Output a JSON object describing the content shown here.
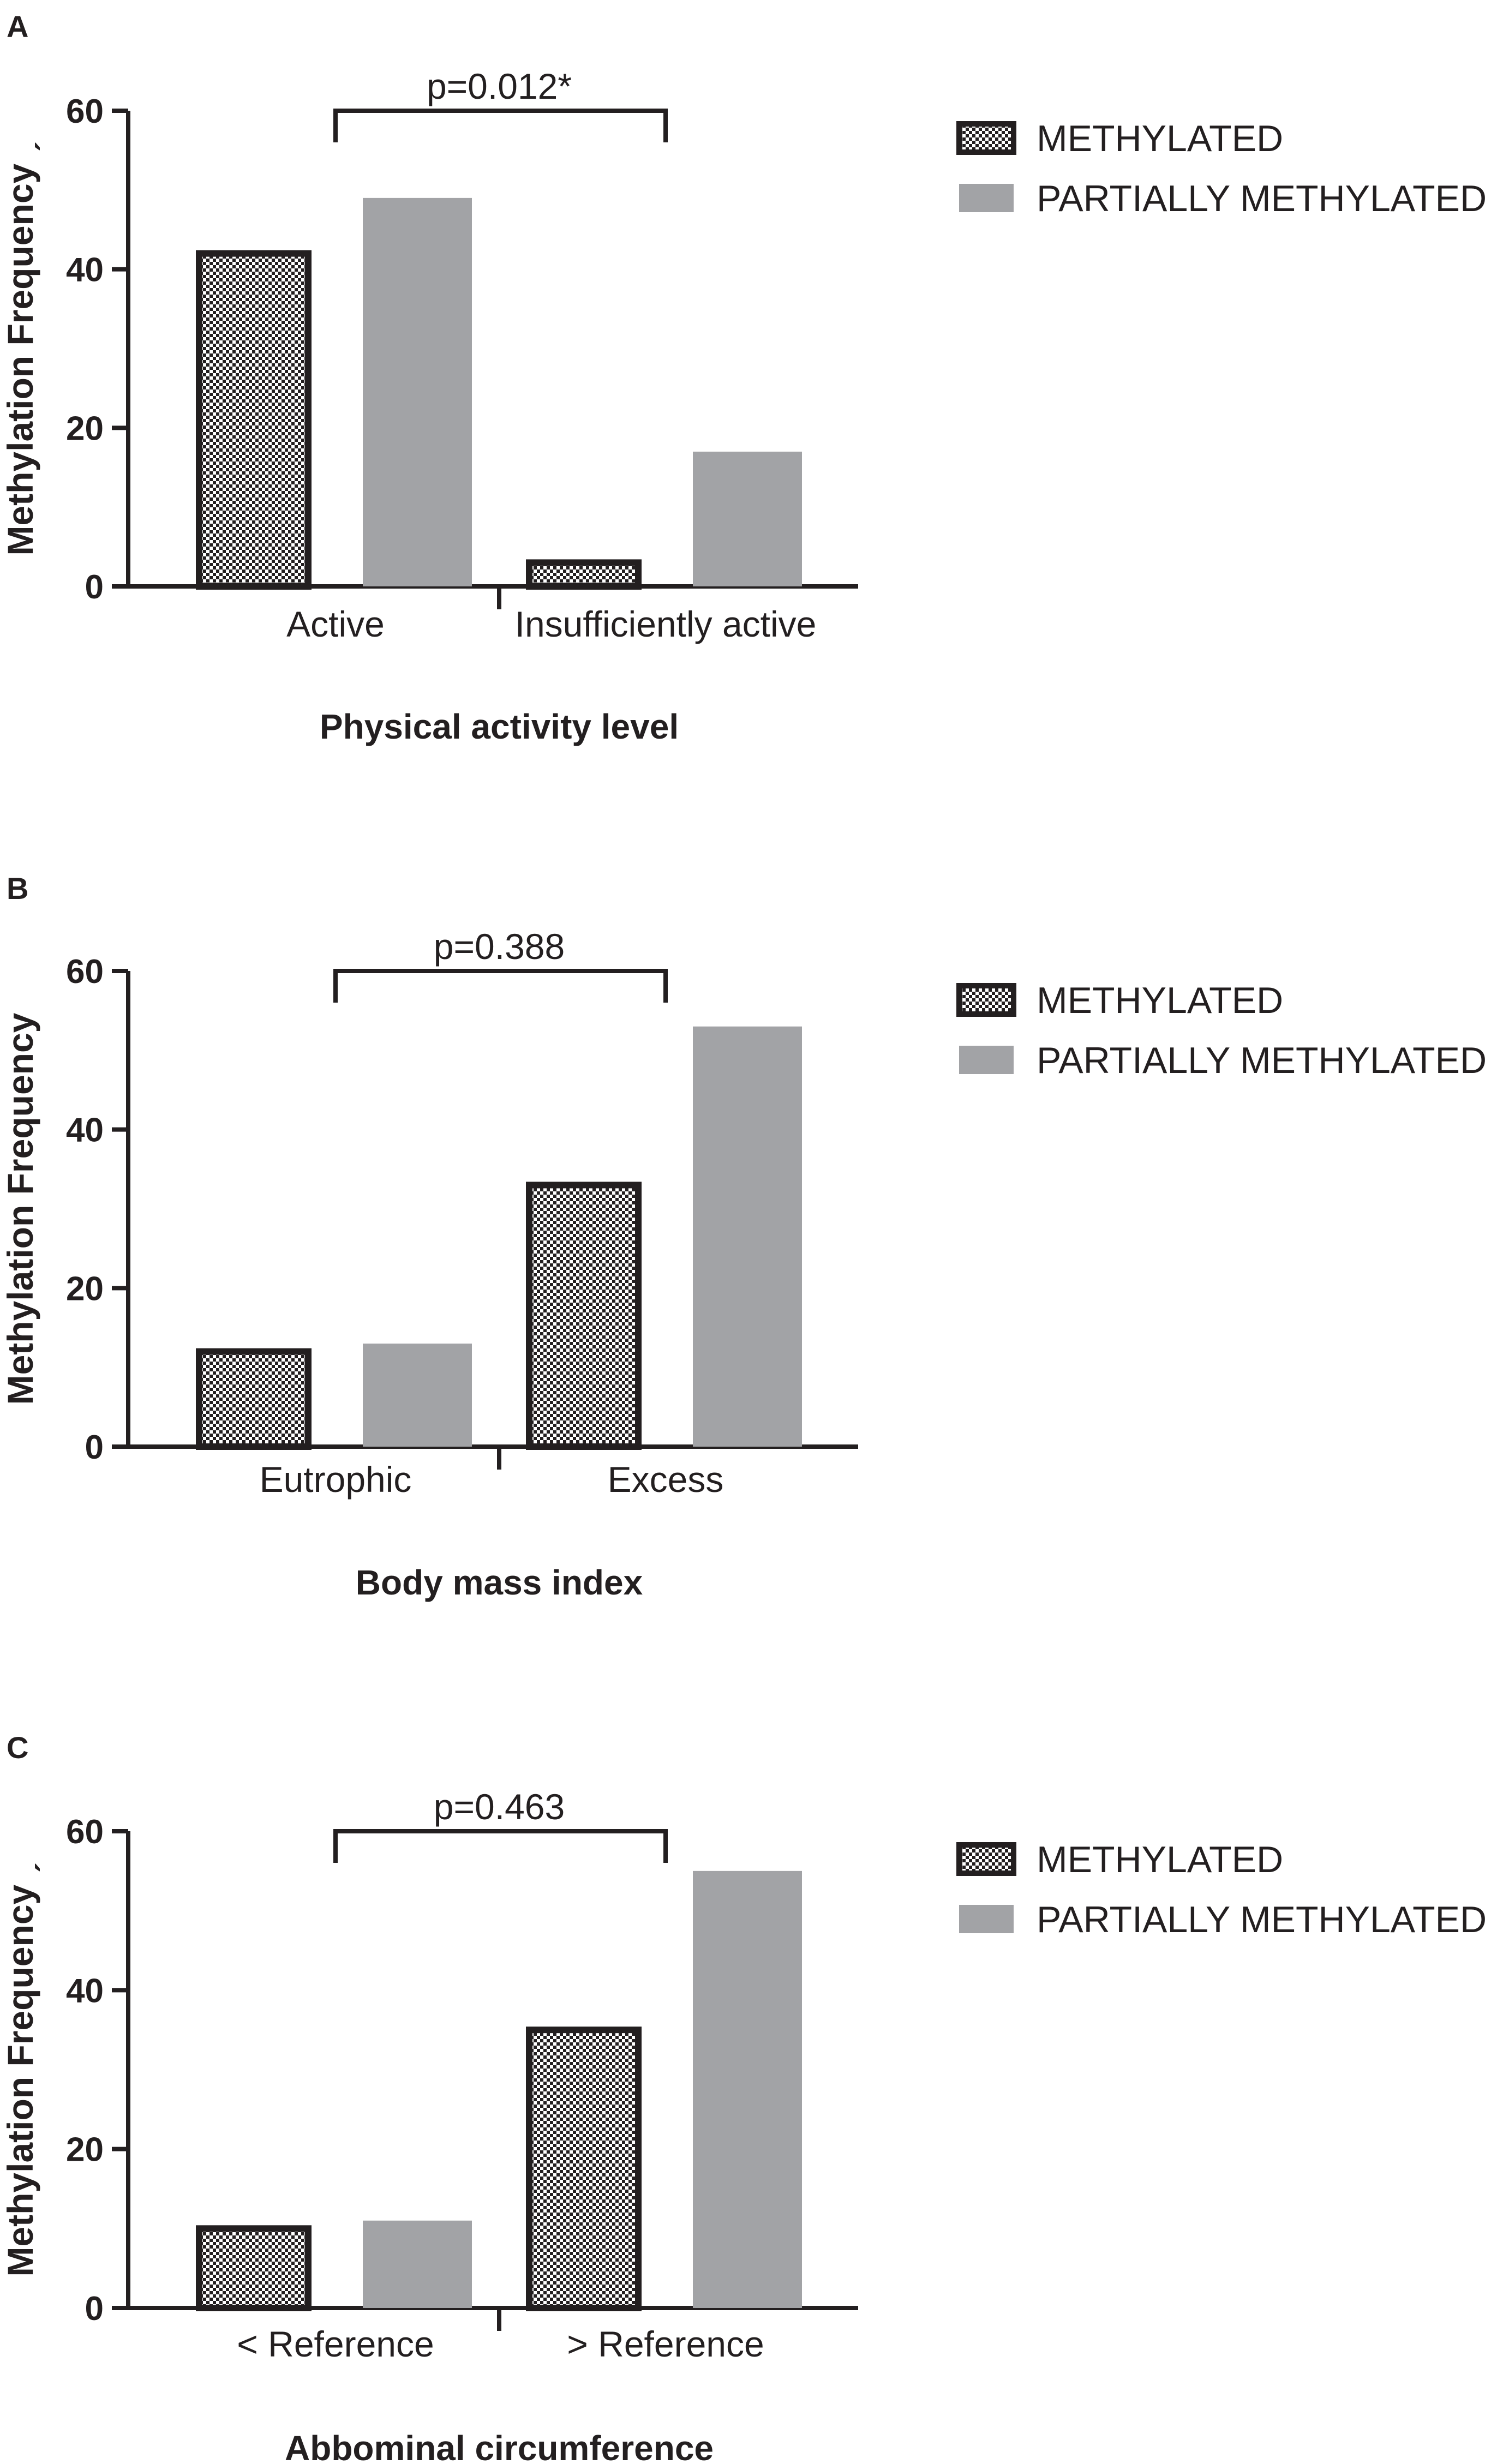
{
  "colors": {
    "axis": "#231f20",
    "partial_fill": "#a2a3a6",
    "checker_dark": "#231f20",
    "checker_light": "#ffffff"
  },
  "chart_data": [
    {
      "panel": "A",
      "type": "bar",
      "categories": [
        "Active",
        "Insufficiently active"
      ],
      "series": [
        {
          "name": "METHYLATED",
          "values": [
            42,
            3
          ]
        },
        {
          "name": "PARTIALLY METHYLATED",
          "values": [
            49,
            17
          ]
        }
      ],
      "ylabel": "Methylation Frequency",
      "ylabel_extra": "ˏ",
      "xlabel": "Physical activity level",
      "ylim": [
        0,
        60
      ],
      "yticks": [
        0,
        20,
        40,
        60
      ],
      "annotation": "p=0.012*",
      "legend": [
        "METHYLATED",
        "PARTIALLY METHYLATED"
      ],
      "legend_position": "top-right",
      "grid": false
    },
    {
      "panel": "B",
      "type": "bar",
      "categories": [
        "Eutrophic",
        "Excess"
      ],
      "series": [
        {
          "name": "METHYLATED",
          "values": [
            12,
            33
          ]
        },
        {
          "name": "PARTIALLY METHYLATED",
          "values": [
            13,
            53
          ]
        }
      ],
      "ylabel": "Methylation Frequency",
      "ylabel_extra": "",
      "xlabel": "Body mass index",
      "ylim": [
        0,
        60
      ],
      "yticks": [
        0,
        20,
        40,
        60
      ],
      "annotation": "p=0.388",
      "legend": [
        "METHYLATED",
        "PARTIALLY METHYLATED"
      ],
      "legend_position": "top-right",
      "grid": false
    },
    {
      "panel": "C",
      "type": "bar",
      "categories": [
        "< Reference",
        "> Reference"
      ],
      "series": [
        {
          "name": "METHYLATED",
          "values": [
            10,
            35
          ]
        },
        {
          "name": "PARTIALLY METHYLATED",
          "values": [
            11,
            55
          ]
        }
      ],
      "ylabel": "Methylation Frequency",
      "ylabel_extra": "ˏ",
      "xlabel": "Abbominal circumference",
      "ylim": [
        0,
        60
      ],
      "yticks": [
        0,
        20,
        40,
        60
      ],
      "annotation": "p=0.463",
      "legend": [
        "METHYLATED",
        "PARTIALLY METHYLATED"
      ],
      "legend_position": "top-right",
      "grid": false
    }
  ]
}
